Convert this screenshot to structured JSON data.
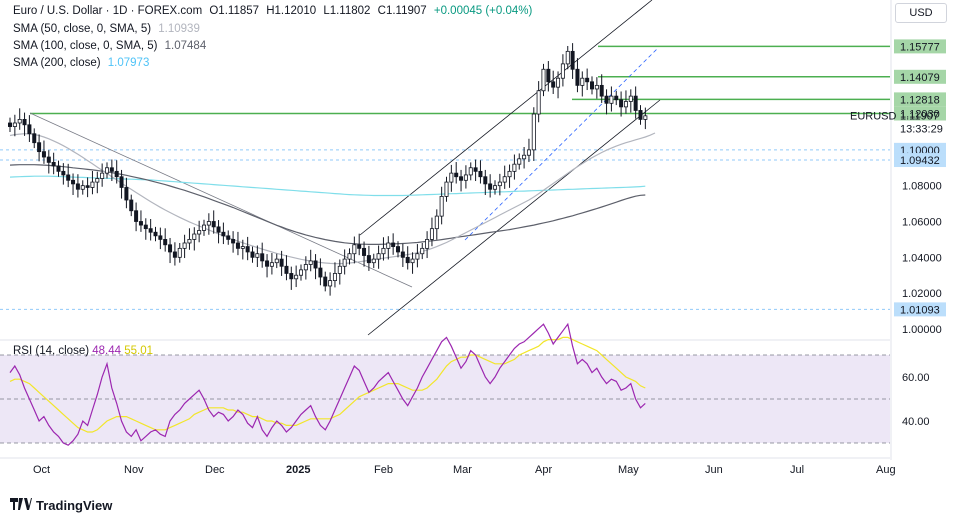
{
  "header": {
    "symbol_line": "Euro / U.S. Dollar · 1D · FOREX.com",
    "open": "O1.11857",
    "high": "H1.12010",
    "low": "L1.11802",
    "close": "C1.11907",
    "change": "+0.00045 (+0.04%)",
    "sma50_label": "SMA (50, close, 0, SMA, 5)",
    "sma50_value": "1.10939",
    "sma100_label": "SMA (100, close, 0, SMA, 5)",
    "sma100_value": "1.07484",
    "sma200_label": "SMA (200, close)",
    "sma200_value": "1.07973"
  },
  "currency_button": "USD",
  "brand": "TradingView",
  "rsi": {
    "label": "RSI (14, close)",
    "value": "48.44",
    "ma_value": "55.01"
  },
  "colors": {
    "up": "#131722",
    "green_line": "#4caf50",
    "green_tag": "#a5d6a7",
    "blue_tag": "#bbdefb",
    "blue_line": "#2962ff",
    "sma50": "#b2b5be",
    "sma100": "#5d606b",
    "sma200": "#80deea",
    "rsi_line": "#9c27b0",
    "rsi_ma": "#f2e62a",
    "rsi_band": "#ede7f6"
  },
  "chart_data": {
    "type": "candlestick",
    "symbol": "EURUSD",
    "timeframe": "1D",
    "y_axis_ticks": [
      "1.08000",
      "1.06000",
      "1.04000",
      "1.02000",
      "1.00000"
    ],
    "price_tags": [
      {
        "label": "1.15777",
        "kind": "green"
      },
      {
        "label": "1.14079",
        "kind": "green"
      },
      {
        "label": "1.12818",
        "kind": "green"
      },
      {
        "label": "1.12030",
        "kind": "green"
      },
      {
        "label": "1.11907",
        "kind": "last",
        "name": "EURUSD",
        "countdown": "13:33:29"
      },
      {
        "label": "1.10000",
        "kind": "blue"
      },
      {
        "label": "1.09432",
        "kind": "blue"
      },
      {
        "label": "1.01093",
        "kind": "blue"
      }
    ],
    "horizontal_levels": [
      1.15777,
      1.14079,
      1.12818,
      1.1203,
      1.1,
      1.09432,
      1.01093
    ],
    "x_axis_labels": [
      "Oct",
      "Nov",
      "Dec",
      "2025",
      "Feb",
      "Mar",
      "Apr",
      "May",
      "Jun",
      "Jul",
      "Aug"
    ],
    "rsi_ticks": [
      "60.00",
      "40.00"
    ],
    "rsi_levels": [
      70,
      50,
      30
    ],
    "closes": [
      1.113,
      1.115,
      1.117,
      1.114,
      1.109,
      1.104,
      1.099,
      1.096,
      1.093,
      1.091,
      1.088,
      1.086,
      1.083,
      1.081,
      1.078,
      1.08,
      1.079,
      1.082,
      1.084,
      1.087,
      1.09,
      1.088,
      1.085,
      1.079,
      1.072,
      1.066,
      1.06,
      1.058,
      1.056,
      1.054,
      1.052,
      1.05,
      1.047,
      1.043,
      1.04,
      1.045,
      1.048,
      1.05,
      1.053,
      1.055,
      1.058,
      1.06,
      1.057,
      1.054,
      1.052,
      1.05,
      1.048,
      1.045,
      1.046,
      1.043,
      1.04,
      1.042,
      1.038,
      1.035,
      1.037,
      1.039,
      1.035,
      1.031,
      1.028,
      1.03,
      1.033,
      1.036,
      1.038,
      1.034,
      1.029,
      1.024,
      1.027,
      1.031,
      1.035,
      1.039,
      1.042,
      1.047,
      1.045,
      1.041,
      1.037,
      1.039,
      1.042,
      1.045,
      1.048,
      1.046,
      1.043,
      1.04,
      1.037,
      1.039,
      1.042,
      1.045,
      1.05,
      1.056,
      1.063,
      1.074,
      1.082,
      1.087,
      1.085,
      1.083,
      1.086,
      1.09,
      1.088,
      1.085,
      1.081,
      1.078,
      1.08,
      1.082,
      1.085,
      1.088,
      1.092,
      1.095,
      1.097,
      1.1,
      1.12,
      1.133,
      1.145,
      1.138,
      1.135,
      1.14,
      1.148,
      1.155,
      1.145,
      1.136,
      1.14,
      1.138,
      1.134,
      1.136,
      1.13,
      1.126,
      1.13,
      1.128,
      1.124,
      1.127,
      1.13,
      1.122,
      1.117,
      1.119
    ],
    "sma50": [
      1.108,
      1.1085,
      1.1088,
      1.109,
      1.1089,
      1.1086,
      1.108,
      1.1072,
      1.1062,
      1.105,
      1.1037,
      1.1023,
      1.1008,
      1.0992,
      1.0975,
      1.0958,
      1.094,
      1.0922,
      1.0904,
      1.0886,
      1.0868,
      1.085,
      1.0832,
      1.0814,
      1.0796,
      1.0779,
      1.0762,
      1.0745,
      1.0728,
      1.0711,
      1.0695,
      1.0679,
      1.0664,
      1.065,
      1.0636,
      1.0623,
      1.061,
      1.0598,
      1.0586,
      1.0575,
      1.0564,
      1.0553,
      1.0542,
      1.0531,
      1.052,
      1.051,
      1.05,
      1.049,
      1.0481,
      1.0472,
      1.0463,
      1.0454,
      1.0446,
      1.0438,
      1.043,
      1.0422,
      1.0415,
      1.0408,
      1.0401,
      1.0395,
      1.0389,
      1.0384,
      1.0379,
      1.0375,
      1.0371,
      1.0368,
      1.0366,
      1.0365,
      1.0365,
      1.0366,
      1.0368,
      1.0371,
      1.0375,
      1.0379,
      1.0383,
      1.0387,
      1.0391,
      1.0395,
      1.0399,
      1.0403,
      1.0407,
      1.0411,
      1.0415,
      1.042,
      1.0426,
      1.0433,
      1.0441,
      1.045,
      1.046,
      1.0471,
      1.0483,
      1.0496,
      1.051,
      1.0524,
      1.0538,
      1.0552,
      1.0566,
      1.058,
      1.0594,
      1.0608,
      1.0622,
      1.0636,
      1.065,
      1.0664,
      1.0678,
      1.0692,
      1.0706,
      1.072,
      1.0737,
      1.0755,
      1.0774,
      1.0793,
      1.0812,
      1.0831,
      1.085,
      1.0869,
      1.0888,
      1.0906,
      1.0923,
      1.094,
      1.0956,
      1.0971,
      1.0985,
      1.0998,
      1.101,
      1.1021,
      1.1031,
      1.104,
      1.1048,
      1.1056,
      1.1064,
      1.1072,
      1.1082,
      1.1094
    ],
    "sma100": [
      1.0915,
      1.0916,
      1.0917,
      1.0917,
      1.0917,
      1.0917,
      1.0916,
      1.0915,
      1.0913,
      1.0911,
      1.0909,
      1.0906,
      1.0903,
      1.09,
      1.0897,
      1.0894,
      1.0891,
      1.0888,
      1.0885,
      1.0881,
      1.0877,
      1.0873,
      1.0868,
      1.0863,
      1.0858,
      1.0852,
      1.0846,
      1.084,
      1.0834,
      1.0827,
      1.082,
      1.0813,
      1.0806,
      1.0798,
      1.079,
      1.0782,
      1.0774,
      1.0765,
      1.0756,
      1.0747,
      1.0738,
      1.0728,
      1.0718,
      1.0708,
      1.0698,
      1.0688,
      1.0678,
      1.0667,
      1.0656,
      1.0645,
      1.0634,
      1.0623,
      1.0612,
      1.0601,
      1.059,
      1.0579,
      1.0569,
      1.0559,
      1.055,
      1.0541,
      1.0533,
      1.0525,
      1.0518,
      1.0511,
      1.0505,
      1.0499,
      1.0494,
      1.0489,
      1.0485,
      1.0481,
      1.0478,
      1.0476,
      1.0474,
      1.0473,
      1.0472,
      1.0472,
      1.0472,
      1.0473,
      1.0474,
      1.0475,
      1.0476,
      1.0477,
      1.0479,
      1.0481,
      1.0483,
      1.0486,
      1.0489,
      1.0492,
      1.0495,
      1.0499,
      1.0503,
      1.0507,
      1.0511,
      1.0515,
      1.0519,
      1.0523,
      1.0527,
      1.0531,
      1.0535,
      1.0539,
      1.0543,
      1.0547,
      1.0551,
      1.0555,
      1.056,
      1.0565,
      1.057,
      1.0575,
      1.058,
      1.0586,
      1.0592,
      1.0598,
      1.0604,
      1.0611,
      1.0618,
      1.0625,
      1.0632,
      1.064,
      1.0648,
      1.0656,
      1.0664,
      1.0672,
      1.0681,
      1.069,
      1.0699,
      1.0708,
      1.0717,
      1.0726,
      1.0734,
      1.0741,
      1.0746,
      1.0748
    ],
    "sma200": [
      1.0848,
      1.0849,
      1.085,
      1.0851,
      1.0852,
      1.0853,
      1.0853,
      1.0853,
      1.0853,
      1.0852,
      1.0851,
      1.085,
      1.0849,
      1.0848,
      1.0847,
      1.0846,
      1.0845,
      1.0844,
      1.0843,
      1.0842,
      1.0841,
      1.084,
      1.0839,
      1.0838,
      1.0837,
      1.0836,
      1.0835,
      1.0834,
      1.0833,
      1.0832,
      1.083,
      1.0828,
      1.0826,
      1.0824,
      1.0822,
      1.082,
      1.0818,
      1.0816,
      1.0814,
      1.0812,
      1.081,
      1.0808,
      1.0806,
      1.0804,
      1.0802,
      1.08,
      1.0798,
      1.0796,
      1.0794,
      1.0792,
      1.079,
      1.0788,
      1.0786,
      1.0784,
      1.0782,
      1.078,
      1.0778,
      1.0776,
      1.0774,
      1.0772,
      1.077,
      1.0768,
      1.0766,
      1.0764,
      1.0762,
      1.076,
      1.0758,
      1.0756,
      1.0754,
      1.0752,
      1.075,
      1.0749,
      1.0748,
      1.0747,
      1.0746,
      1.0745,
      1.0745,
      1.0745,
      1.0745,
      1.0745,
      1.0745,
      1.0745,
      1.0746,
      1.0747,
      1.0748,
      1.0749,
      1.075,
      1.0751,
      1.0752,
      1.0753,
      1.0754,
      1.0755,
      1.0756,
      1.0757,
      1.0758,
      1.0759,
      1.076,
      1.0761,
      1.0762,
      1.0763,
      1.0764,
      1.0765,
      1.0766,
      1.0767,
      1.0768,
      1.0769,
      1.077,
      1.0771,
      1.0772,
      1.0773,
      1.0774,
      1.0775,
      1.0776,
      1.0777,
      1.0778,
      1.0779,
      1.078,
      1.0781,
      1.0782,
      1.0783,
      1.0784,
      1.0785,
      1.0786,
      1.0787,
      1.0788,
      1.0789,
      1.079,
      1.0791,
      1.0792,
      1.0793,
      1.0795,
      1.0797
    ],
    "rsi_values": [
      62,
      65,
      61,
      55,
      50,
      45,
      40,
      42,
      38,
      35,
      33,
      30,
      29,
      31,
      34,
      40,
      38,
      45,
      52,
      60,
      66,
      55,
      48,
      40,
      35,
      33,
      36,
      31,
      33,
      35,
      36,
      34,
      33,
      40,
      43,
      45,
      48,
      50,
      52,
      54,
      50,
      45,
      42,
      44,
      43,
      40,
      42,
      45,
      43,
      39,
      37,
      42,
      36,
      33,
      37,
      40,
      38,
      35,
      37,
      40,
      43,
      45,
      47,
      42,
      38,
      36,
      40,
      45,
      50,
      55,
      60,
      65,
      63,
      58,
      53,
      55,
      58,
      60,
      62,
      58,
      54,
      50,
      47,
      51,
      55,
      60,
      64,
      68,
      72,
      76,
      78,
      74,
      69,
      64,
      67,
      72,
      70,
      65,
      60,
      57,
      60,
      64,
      67,
      70,
      73,
      75,
      76,
      78,
      80,
      82,
      84,
      80,
      75,
      78,
      81,
      84,
      74,
      66,
      68,
      66,
      62,
      64,
      60,
      57,
      59,
      58,
      54,
      55,
      57,
      50,
      46,
      48
    ],
    "rsi_ma_values": [
      58,
      59,
      59,
      58,
      57,
      55,
      53,
      51,
      49,
      47,
      45,
      43,
      41,
      39,
      37,
      36,
      35,
      35,
      36,
      38,
      40,
      41,
      42,
      42,
      42,
      41,
      40,
      39,
      38,
      37,
      36,
      36,
      36,
      37,
      38,
      39,
      40,
      41,
      43,
      44,
      45,
      46,
      46,
      46,
      46,
      45,
      45,
      44,
      44,
      43,
      42,
      42,
      41,
      40,
      40,
      39,
      39,
      38,
      38,
      38,
      39,
      40,
      41,
      41,
      41,
      41,
      41,
      42,
      43,
      45,
      47,
      49,
      51,
      52,
      53,
      54,
      55,
      56,
      57,
      57,
      57,
      56,
      55,
      54,
      54,
      54,
      55,
      57,
      59,
      62,
      65,
      67,
      68,
      69,
      69,
      70,
      70,
      69,
      68,
      67,
      66,
      66,
      66,
      67,
      68,
      70,
      71,
      72,
      73,
      74,
      76,
      77,
      77,
      77,
      78,
      78,
      77,
      76,
      75,
      74,
      73,
      72,
      70,
      68,
      66,
      64,
      62,
      60,
      59,
      58,
      56,
      55
    ]
  }
}
